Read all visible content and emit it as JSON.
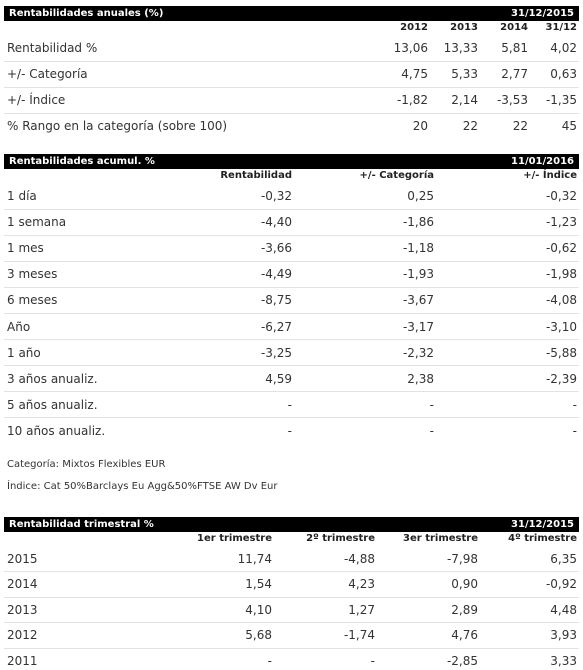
{
  "anual": {
    "title": "Rentabilidades anuales (%)",
    "date": "31/12/2015",
    "headers": [
      "2012",
      "2013",
      "2014",
      "31/12"
    ],
    "rows": [
      {
        "label": "Rentabilidad %",
        "values": [
          "13,06",
          "13,33",
          "5,81",
          "4,02"
        ]
      },
      {
        "label": "+/- Categoría",
        "values": [
          "4,75",
          "5,33",
          "2,77",
          "0,63"
        ]
      },
      {
        "label": "+/- Índice",
        "values": [
          "-1,82",
          "2,14",
          "-3,53",
          "-1,35"
        ]
      },
      {
        "label": "% Rango en la categoría (sobre 100)",
        "values": [
          "20",
          "22",
          "22",
          "45"
        ]
      }
    ]
  },
  "acumul": {
    "title": "Rentabilidades acumul. %",
    "date": "11/01/2016",
    "headers": [
      "Rentabilidad",
      "+/- Categoría",
      "+/- Índice"
    ],
    "rows": [
      {
        "label": "1 día",
        "values": [
          "-0,32",
          "0,25",
          "-0,32"
        ]
      },
      {
        "label": "1 semana",
        "values": [
          "-4,40",
          "-1,86",
          "-1,23"
        ]
      },
      {
        "label": "1 mes",
        "values": [
          "-3,66",
          "-1,18",
          "-0,62"
        ]
      },
      {
        "label": "3 meses",
        "values": [
          "-4,49",
          "-1,93",
          "-1,98"
        ]
      },
      {
        "label": "6 meses",
        "values": [
          "-8,75",
          "-3,67",
          "-4,08"
        ]
      },
      {
        "label": "Año",
        "values": [
          "-6,27",
          "-3,17",
          "-3,10"
        ]
      },
      {
        "label": "1 año",
        "values": [
          "-3,25",
          "-2,32",
          "-5,88"
        ]
      },
      {
        "label": "3 años anualiz.",
        "values": [
          "4,59",
          "2,38",
          "-2,39"
        ]
      },
      {
        "label": "5 años anualiz.",
        "values": [
          "-",
          "-",
          "-"
        ]
      },
      {
        "label": "10 años anualiz.",
        "values": [
          "-",
          "-",
          "-"
        ]
      }
    ]
  },
  "notes": {
    "categoria": "Categoría: Mixtos Flexibles EUR",
    "indice": "Índice: Cat 50%Barclays Eu Agg&50%FTSE AW Dv Eur"
  },
  "trimestral": {
    "title": "Rentabilidad trimestral %",
    "date": "31/12/2015",
    "headers": [
      "1er trimestre",
      "2º trimestre",
      "3er trimestre",
      "4º trimestre"
    ],
    "rows": [
      {
        "label": "2015",
        "values": [
          "11,74",
          "-4,88",
          "-7,98",
          "6,35"
        ]
      },
      {
        "label": "2014",
        "values": [
          "1,54",
          "4,23",
          "0,90",
          "-0,92"
        ]
      },
      {
        "label": "2013",
        "values": [
          "4,10",
          "1,27",
          "2,89",
          "4,48"
        ]
      },
      {
        "label": "2012",
        "values": [
          "5,68",
          "-1,74",
          "4,76",
          "3,93"
        ]
      },
      {
        "label": "2011",
        "values": [
          "-",
          "-",
          "-2,85",
          "3,33"
        ]
      }
    ]
  }
}
